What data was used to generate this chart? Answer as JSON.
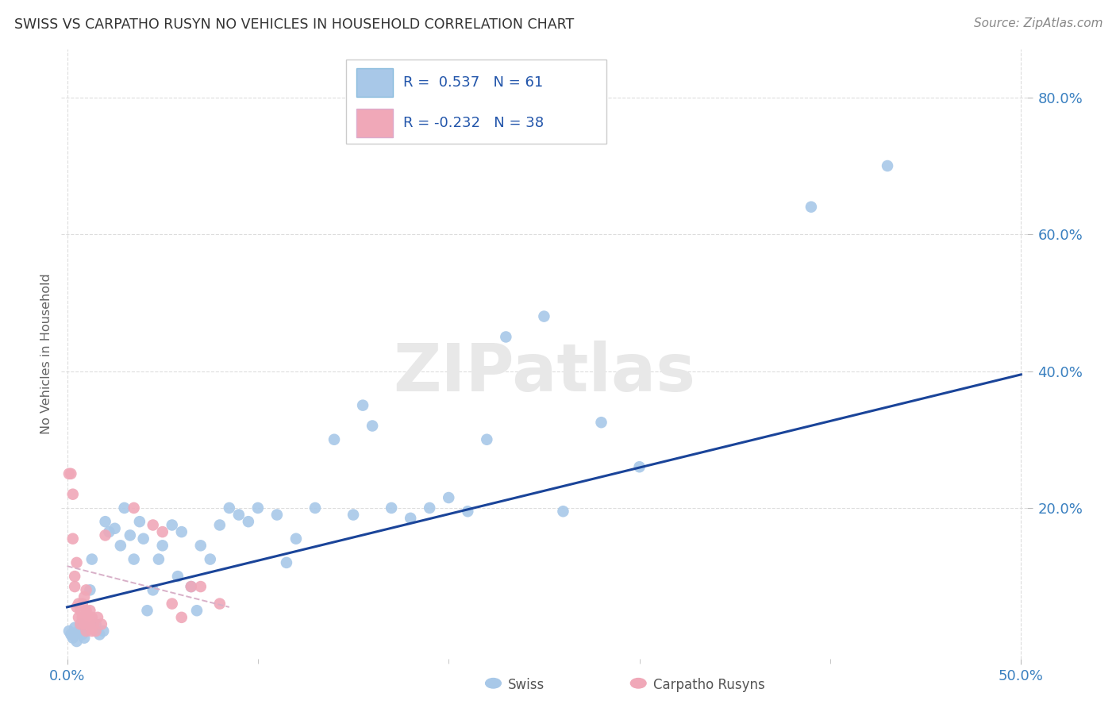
{
  "title": "SWISS VS CARPATHO RUSYN NO VEHICLES IN HOUSEHOLD CORRELATION CHART",
  "source": "Source: ZipAtlas.com",
  "ylabel": "No Vehicles in Household",
  "xlim": [
    -0.003,
    0.503
  ],
  "ylim": [
    -0.02,
    0.87
  ],
  "ytick_values": [
    0.2,
    0.4,
    0.6,
    0.8
  ],
  "ytick_labels": [
    "20.0%",
    "40.0%",
    "60.0%",
    "80.0%"
  ],
  "xtick_major": [
    0.0,
    0.5
  ],
  "xtick_major_labels": [
    "0.0%",
    "50.0%"
  ],
  "xtick_minor": [
    0.1,
    0.2,
    0.3,
    0.4
  ],
  "watermark": "ZIPatlas",
  "legend_swiss_R": "0.537",
  "legend_swiss_N": "61",
  "legend_rusyn_R": "-0.232",
  "legend_rusyn_N": "38",
  "swiss_color": "#a8c8e8",
  "rusyn_color": "#f0a8b8",
  "line_swiss_color": "#1a4499",
  "line_rusyn_color": "#d8b0c8",
  "swiss_line_x": [
    0.0,
    0.5
  ],
  "swiss_line_y": [
    0.055,
    0.395
  ],
  "rusyn_line_x": [
    0.0,
    0.085
  ],
  "rusyn_line_y": [
    0.115,
    0.055
  ],
  "swiss_points": [
    [
      0.001,
      0.02
    ],
    [
      0.002,
      0.015
    ],
    [
      0.003,
      0.01
    ],
    [
      0.004,
      0.025
    ],
    [
      0.005,
      0.005
    ],
    [
      0.006,
      0.02
    ],
    [
      0.007,
      0.03
    ],
    [
      0.008,
      0.015
    ],
    [
      0.009,
      0.01
    ],
    [
      0.01,
      0.025
    ],
    [
      0.012,
      0.08
    ],
    [
      0.013,
      0.125
    ],
    [
      0.015,
      0.03
    ],
    [
      0.017,
      0.015
    ],
    [
      0.019,
      0.02
    ],
    [
      0.02,
      0.18
    ],
    [
      0.022,
      0.165
    ],
    [
      0.025,
      0.17
    ],
    [
      0.028,
      0.145
    ],
    [
      0.03,
      0.2
    ],
    [
      0.033,
      0.16
    ],
    [
      0.035,
      0.125
    ],
    [
      0.038,
      0.18
    ],
    [
      0.04,
      0.155
    ],
    [
      0.042,
      0.05
    ],
    [
      0.045,
      0.08
    ],
    [
      0.048,
      0.125
    ],
    [
      0.05,
      0.145
    ],
    [
      0.055,
      0.175
    ],
    [
      0.058,
      0.1
    ],
    [
      0.06,
      0.165
    ],
    [
      0.065,
      0.085
    ],
    [
      0.068,
      0.05
    ],
    [
      0.07,
      0.145
    ],
    [
      0.075,
      0.125
    ],
    [
      0.08,
      0.175
    ],
    [
      0.085,
      0.2
    ],
    [
      0.09,
      0.19
    ],
    [
      0.095,
      0.18
    ],
    [
      0.1,
      0.2
    ],
    [
      0.11,
      0.19
    ],
    [
      0.115,
      0.12
    ],
    [
      0.12,
      0.155
    ],
    [
      0.13,
      0.2
    ],
    [
      0.14,
      0.3
    ],
    [
      0.15,
      0.19
    ],
    [
      0.155,
      0.35
    ],
    [
      0.16,
      0.32
    ],
    [
      0.17,
      0.2
    ],
    [
      0.18,
      0.185
    ],
    [
      0.19,
      0.2
    ],
    [
      0.2,
      0.215
    ],
    [
      0.21,
      0.195
    ],
    [
      0.22,
      0.3
    ],
    [
      0.23,
      0.45
    ],
    [
      0.25,
      0.48
    ],
    [
      0.26,
      0.195
    ],
    [
      0.28,
      0.325
    ],
    [
      0.3,
      0.26
    ],
    [
      0.39,
      0.64
    ],
    [
      0.43,
      0.7
    ]
  ],
  "rusyn_points": [
    [
      0.001,
      0.25
    ],
    [
      0.002,
      0.25
    ],
    [
      0.003,
      0.22
    ],
    [
      0.003,
      0.155
    ],
    [
      0.004,
      0.1
    ],
    [
      0.004,
      0.085
    ],
    [
      0.005,
      0.055
    ],
    [
      0.005,
      0.12
    ],
    [
      0.006,
      0.06
    ],
    [
      0.006,
      0.04
    ],
    [
      0.007,
      0.03
    ],
    [
      0.007,
      0.05
    ],
    [
      0.008,
      0.04
    ],
    [
      0.008,
      0.06
    ],
    [
      0.009,
      0.07
    ],
    [
      0.009,
      0.03
    ],
    [
      0.01,
      0.05
    ],
    [
      0.01,
      0.08
    ],
    [
      0.011,
      0.04
    ],
    [
      0.011,
      0.03
    ],
    [
      0.012,
      0.05
    ],
    [
      0.012,
      0.03
    ],
    [
      0.013,
      0.04
    ],
    [
      0.013,
      0.02
    ],
    [
      0.014,
      0.03
    ],
    [
      0.015,
      0.02
    ],
    [
      0.016,
      0.04
    ],
    [
      0.018,
      0.03
    ],
    [
      0.02,
      0.16
    ],
    [
      0.035,
      0.2
    ],
    [
      0.045,
      0.175
    ],
    [
      0.05,
      0.165
    ],
    [
      0.055,
      0.06
    ],
    [
      0.06,
      0.04
    ],
    [
      0.065,
      0.085
    ],
    [
      0.07,
      0.085
    ],
    [
      0.08,
      0.06
    ],
    [
      0.01,
      0.02
    ]
  ]
}
